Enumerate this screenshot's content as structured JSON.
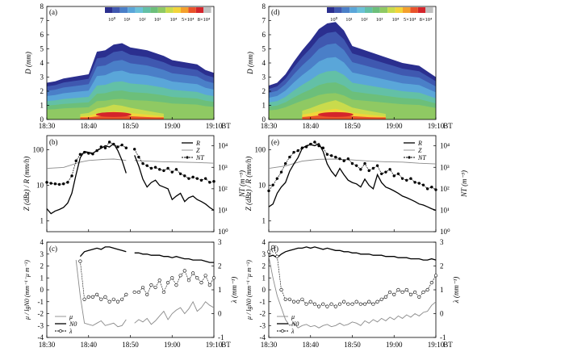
{
  "figure": {
    "time_ticks": [
      "18:30",
      "18:40",
      "18:50",
      "19:00",
      "19:10"
    ],
    "time_unit": "BT",
    "colors": {
      "spectrum": [
        "#2b2f8f",
        "#3f58b0",
        "#4a7fc8",
        "#5aa6d9",
        "#6bc1d8",
        "#63c0a6",
        "#6cbf7a",
        "#8fc963",
        "#c9db4c",
        "#f2d43a",
        "#f4a02c",
        "#e9532a",
        "#d4242b",
        "#c0c0c0"
      ],
      "line": "#000000",
      "grey": "#8a8a8a"
    }
  },
  "chart_data": [
    {
      "panel": "(a)",
      "type": "heatmap",
      "ylabel": "D (mm)",
      "ylim": [
        0,
        8
      ],
      "yticks": [
        "0",
        "1",
        "2",
        "3",
        "4",
        "5",
        "6",
        "7",
        "8"
      ],
      "colorbar": {
        "labels": [
          "10⁰",
          "10¹",
          "10²",
          "10³",
          "10⁴",
          "5×10⁴",
          "8×10⁴"
        ]
      },
      "time_min": [
        0,
        2,
        4,
        6,
        8,
        10,
        12,
        14,
        16,
        18,
        20,
        22,
        24,
        26,
        28,
        30,
        32,
        34,
        36,
        38,
        40
      ],
      "top_D": [
        2.6,
        2.7,
        2.9,
        3.0,
        3.1,
        3.2,
        4.8,
        4.9,
        5.3,
        5.4,
        5.1,
        5.0,
        4.9,
        4.7,
        4.5,
        4.2,
        4.1,
        4.0,
        3.9,
        3.5,
        3.3
      ]
    },
    {
      "panel": "(d)",
      "type": "heatmap",
      "ylabel": "D (mm)",
      "ylim": [
        0,
        8
      ],
      "yticks": [
        "0",
        "1",
        "2",
        "3",
        "4",
        "5",
        "6",
        "7",
        "8"
      ],
      "colorbar": {
        "labels": [
          "10⁰",
          "10¹",
          "10²",
          "10³",
          "10⁴",
          "5×10⁴",
          "8×10⁴"
        ]
      },
      "time_min": [
        0,
        2,
        4,
        6,
        8,
        10,
        12,
        14,
        16,
        18,
        20,
        22,
        24,
        26,
        28,
        30,
        32,
        34,
        36,
        38,
        40
      ],
      "top_D": [
        2.4,
        2.6,
        3.2,
        4.1,
        4.9,
        5.6,
        6.4,
        6.8,
        6.9,
        6.3,
        5.2,
        5.0,
        4.8,
        4.6,
        4.4,
        4.2,
        4.0,
        3.9,
        3.8,
        3.4,
        3.0
      ]
    },
    {
      "panel": "(b)",
      "type": "line",
      "ylabel": "Z (dBz) / R (mm/h)",
      "y2label": "NT (m⁻³)",
      "yticks": [
        "1",
        "10",
        "100"
      ],
      "y2ticks": [
        "10⁰",
        "10¹",
        "10²",
        "10³",
        "10⁴"
      ],
      "legend": [
        "R",
        "Z",
        "NT"
      ],
      "series": [
        {
          "name": "R",
          "x": [
            0,
            1,
            2,
            3,
            4,
            5,
            6,
            7,
            8,
            9,
            10,
            11,
            12,
            13,
            14,
            15,
            16,
            17,
            18,
            19,
            null,
            21,
            22,
            23,
            24,
            25,
            26,
            27,
            28,
            29,
            30,
            31,
            32,
            33,
            34,
            35,
            36,
            37,
            38,
            39,
            40
          ],
          "y": [
            2.2,
            1.6,
            1.9,
            2.1,
            2.4,
            3.2,
            6,
            20,
            60,
            90,
            85,
            80,
            95,
            110,
            130,
            120,
            150,
            95,
            50,
            22,
            null,
            70,
            35,
            15,
            9,
            12,
            14,
            10,
            9,
            8,
            4,
            5,
            6,
            3.5,
            4.5,
            5,
            4,
            3.5,
            3,
            2.4,
            2
          ]
        },
        {
          "name": "Z",
          "x": [
            0,
            4,
            8,
            10,
            12,
            14,
            16,
            18,
            19,
            null,
            21,
            24,
            28,
            32,
            36,
            40
          ],
          "y": [
            30,
            32,
            45,
            50,
            52,
            54,
            55,
            52,
            50,
            null,
            50,
            48,
            46,
            45,
            44,
            42
          ]
        },
        {
          "name": "NT",
          "x": [
            0,
            1,
            2,
            3,
            4,
            5,
            6,
            7,
            8,
            9,
            10,
            11,
            12,
            13,
            14,
            15,
            16,
            17,
            18,
            19,
            null,
            21,
            22,
            23,
            24,
            25,
            26,
            27,
            28,
            29,
            30,
            31,
            32,
            33,
            34,
            35,
            36,
            37,
            38,
            39,
            40
          ],
          "y": [
            200,
            180,
            170,
            160,
            170,
            200,
            400,
            2000,
            4000,
            5000,
            4500,
            4200,
            6000,
            9000,
            8000,
            15000,
            12000,
            9000,
            11000,
            8000,
            null,
            7000,
            3000,
            1500,
            1200,
            900,
            1000,
            800,
            700,
            900,
            600,
            800,
            500,
            400,
            300,
            350,
            300,
            250,
            300,
            200,
            220
          ]
        }
      ]
    },
    {
      "panel": "(e)",
      "type": "line",
      "ylabel": "Z (dBz) / R (mm/h)",
      "y2label": "NT (m⁻³)",
      "yticks": [
        "1",
        "10",
        "100"
      ],
      "y2ticks": [
        "10⁰",
        "10¹",
        "10²",
        "10³",
        "10⁴"
      ],
      "legend": [
        "R",
        "Z",
        "NT"
      ],
      "series": [
        {
          "name": "R",
          "x": [
            0,
            1,
            2,
            3,
            4,
            5,
            6,
            7,
            8,
            9,
            10,
            11,
            12,
            13,
            14,
            15,
            16,
            17,
            18,
            19,
            20,
            21,
            22,
            23,
            24,
            25,
            26,
            27,
            28,
            29,
            30,
            31,
            32,
            33,
            34,
            35,
            36,
            37,
            38,
            39,
            40
          ],
          "y": [
            2.5,
            3,
            6,
            9,
            12,
            25,
            40,
            60,
            110,
            130,
            140,
            130,
            150,
            90,
            40,
            25,
            18,
            30,
            20,
            14,
            12,
            11,
            9,
            15,
            10,
            8,
            20,
            12,
            9,
            8,
            7,
            6,
            5,
            4.5,
            4,
            3.5,
            3,
            2.8,
            2.5,
            2.2,
            2
          ]
        },
        {
          "name": "Z",
          "x": [
            0,
            4,
            8,
            12,
            16,
            20,
            24,
            28,
            32,
            36,
            40
          ],
          "y": [
            30,
            35,
            48,
            54,
            55,
            52,
            48,
            46,
            45,
            42,
            40
          ]
        },
        {
          "name": "NT",
          "x": [
            0,
            1,
            2,
            3,
            4,
            5,
            6,
            7,
            8,
            9,
            10,
            11,
            12,
            13,
            14,
            15,
            16,
            17,
            18,
            19,
            20,
            21,
            22,
            23,
            24,
            25,
            26,
            27,
            28,
            29,
            30,
            31,
            32,
            33,
            34,
            35,
            36,
            37,
            38,
            39,
            40
          ],
          "y": [
            80,
            150,
            300,
            600,
            1500,
            3000,
            5000,
            6000,
            8000,
            9000,
            12000,
            15000,
            10000,
            8000,
            4000,
            3500,
            3000,
            2500,
            2000,
            2500,
            1500,
            1200,
            800,
            1500,
            700,
            900,
            1200,
            500,
            600,
            800,
            400,
            500,
            300,
            250,
            300,
            200,
            180,
            150,
            100,
            120,
            90
          ]
        }
      ]
    },
    {
      "panel": "(c)",
      "type": "line",
      "ylabel": "μ / lgN0 (mm⁻¹⁻μ m⁻³)",
      "y2label": "λ (mm⁻¹)",
      "yticks": [
        "-4",
        "-3",
        "-2",
        "-1",
        "0",
        "1",
        "2",
        "3",
        "4"
      ],
      "y2ticks": [
        "-1",
        "0",
        "1",
        "2",
        "3"
      ],
      "legend": [
        "μ",
        "N0",
        "λ"
      ],
      "series": [
        {
          "name": "μ",
          "x": [
            7,
            8,
            9,
            10,
            11,
            12,
            13,
            14,
            15,
            16,
            17,
            18,
            19,
            null,
            21,
            22,
            23,
            24,
            25,
            26,
            27,
            28,
            29,
            30,
            31,
            32,
            33,
            34,
            35,
            36,
            37,
            38,
            39,
            40
          ],
          "y": [
            2.5,
            -0.5,
            -2.8,
            -2.9,
            -3.0,
            -2.8,
            -2.6,
            -3.0,
            -2.9,
            -2.8,
            -3.1,
            -3.0,
            -2.5,
            null,
            -2.8,
            -2.5,
            -2.7,
            -2.4,
            -2.9,
            -2.6,
            -2.2,
            -1.8,
            -2.5,
            -2.0,
            -1.7,
            -1.5,
            -2.0,
            -1.6,
            -1.0,
            -1.8,
            -1.5,
            -1.0,
            -1.3,
            -1.5
          ]
        },
        {
          "name": "N0",
          "x": [
            8,
            9,
            10,
            11,
            12,
            13,
            14,
            15,
            16,
            17,
            18,
            19,
            null,
            21,
            22,
            23,
            24,
            25,
            26,
            27,
            28,
            29,
            30,
            31,
            32,
            33,
            34,
            35,
            36,
            37,
            38,
            39,
            40
          ],
          "y": [
            2.8,
            3.2,
            3.3,
            3.4,
            3.5,
            3.4,
            3.6,
            3.6,
            3.5,
            3.4,
            3.3,
            3.2,
            null,
            3.1,
            3.1,
            3.0,
            3.0,
            2.9,
            2.9,
            2.9,
            2.8,
            2.8,
            2.7,
            2.8,
            2.7,
            2.6,
            2.6,
            2.5,
            2.5,
            2.5,
            2.4,
            2.3,
            2.3
          ]
        },
        {
          "name": "λ",
          "x": [
            8,
            9,
            10,
            11,
            12,
            13,
            14,
            15,
            16,
            17,
            18,
            19,
            null,
            21,
            22,
            23,
            24,
            25,
            26,
            27,
            28,
            29,
            30,
            31,
            32,
            33,
            34,
            35,
            36,
            37,
            38,
            39,
            40
          ],
          "y": [
            2.2,
            0.6,
            0.7,
            0.7,
            0.8,
            0.6,
            0.7,
            0.5,
            0.6,
            0.5,
            0.6,
            0.8,
            null,
            0.9,
            0.9,
            1.1,
            0.8,
            1.2,
            1.1,
            1.4,
            0.9,
            1.3,
            1.5,
            1.2,
            1.6,
            1.8,
            1.4,
            1.7,
            1.5,
            1.3,
            1.6,
            1.2,
            1.5
          ]
        }
      ]
    },
    {
      "panel": "(f)",
      "type": "line",
      "ylabel": "μ / lgN0 (mm⁻¹⁻μ m⁻³)",
      "y2label": "λ (mm⁻¹)",
      "yticks": [
        "-4",
        "-3",
        "-2",
        "-1",
        "0",
        "1",
        "2",
        "3",
        "4"
      ],
      "y2ticks": [
        "-1",
        "0",
        "1",
        "2",
        "3"
      ],
      "legend": [
        "μ",
        "N0",
        "λ"
      ],
      "series": [
        {
          "name": "μ",
          "x": [
            0,
            1,
            2,
            3,
            4,
            5,
            6,
            7,
            8,
            9,
            10,
            11,
            12,
            13,
            14,
            15,
            16,
            17,
            18,
            19,
            20,
            21,
            22,
            23,
            24,
            25,
            26,
            27,
            28,
            29,
            30,
            31,
            32,
            33,
            34,
            35,
            36,
            37,
            38,
            39,
            40
          ],
          "y": [
            2.8,
            1.0,
            -0.5,
            -1.5,
            -2.5,
            -3.0,
            -2.8,
            -3.2,
            -3.0,
            -2.9,
            -3.1,
            -3.0,
            -3.2,
            -3.0,
            -2.9,
            -3.1,
            -3.0,
            -2.8,
            -3.0,
            -2.9,
            -2.7,
            -2.8,
            -3.0,
            -2.6,
            -2.8,
            -2.5,
            -2.7,
            -2.4,
            -2.6,
            -2.3,
            -2.5,
            -2.2,
            -2.4,
            -2.1,
            -2.3,
            -2.0,
            -2.2,
            -1.9,
            -1.8,
            -1.3,
            -1.0
          ]
        },
        {
          "name": "N0",
          "x": [
            0,
            1,
            2,
            3,
            4,
            5,
            6,
            7,
            8,
            9,
            10,
            11,
            12,
            13,
            14,
            15,
            16,
            17,
            18,
            19,
            20,
            21,
            22,
            23,
            24,
            25,
            26,
            27,
            28,
            29,
            30,
            31,
            32,
            33,
            34,
            35,
            36,
            37,
            38,
            39,
            40
          ],
          "y": [
            2.8,
            2.9,
            2.7,
            3.0,
            3.2,
            3.3,
            3.4,
            3.5,
            3.5,
            3.6,
            3.5,
            3.6,
            3.5,
            3.4,
            3.5,
            3.4,
            3.3,
            3.3,
            3.2,
            3.2,
            3.1,
            3.1,
            3.0,
            3.0,
            3.0,
            2.9,
            2.9,
            2.9,
            2.8,
            2.8,
            2.8,
            2.7,
            2.7,
            2.7,
            2.6,
            2.6,
            2.6,
            2.5,
            2.5,
            2.6,
            2.5
          ]
        },
        {
          "name": "λ",
          "x": [
            0,
            1,
            2,
            3,
            4,
            5,
            6,
            7,
            8,
            9,
            10,
            11,
            12,
            13,
            14,
            15,
            16,
            17,
            18,
            19,
            20,
            21,
            22,
            23,
            24,
            25,
            26,
            27,
            28,
            29,
            30,
            31,
            32,
            33,
            34,
            35,
            36,
            37,
            38,
            39,
            40
          ],
          "y": [
            2.6,
            2.8,
            2.4,
            1.0,
            0.6,
            0.6,
            0.5,
            0.5,
            0.6,
            0.4,
            0.5,
            0.4,
            0.3,
            0.4,
            0.3,
            0.4,
            0.3,
            0.4,
            0.5,
            0.4,
            0.4,
            0.5,
            0.4,
            0.4,
            0.5,
            0.4,
            0.5,
            0.6,
            0.7,
            0.9,
            0.8,
            1.0,
            0.9,
            1.0,
            0.8,
            0.9,
            0.7,
            0.9,
            1.0,
            1.3,
            1.6
          ]
        }
      ]
    }
  ]
}
